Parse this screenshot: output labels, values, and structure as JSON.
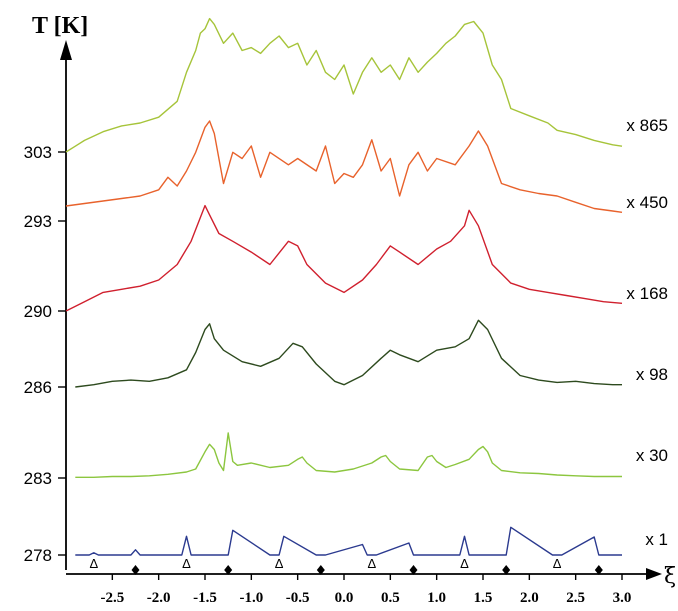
{
  "chart_data": {
    "type": "line",
    "title": "",
    "ylabel": "T [K]",
    "xlabel": "ξ",
    "xlim": [
      -3.0,
      3.0
    ],
    "x_ticks": [
      -2.5,
      -2.0,
      -1.5,
      -1.0,
      -0.5,
      0.0,
      0.5,
      1.0,
      1.5,
      2.0,
      2.5,
      3.0
    ],
    "x_tick_labels": [
      "-2.5",
      "-2.0",
      "-1.5",
      "-1.0",
      "-0.5",
      "0.0",
      "0.5",
      "1.0",
      "1.5",
      "2.0",
      "2.5",
      "3.0"
    ],
    "markers": {
      "delta_symbol": "Δ",
      "diamond_symbol": "♦",
      "delta_positions": [
        -2.7,
        -1.7,
        -0.7,
        0.3,
        1.3,
        2.3
      ],
      "diamond_positions": [
        -2.25,
        -1.25,
        -0.25,
        0.75,
        1.75,
        2.75
      ]
    },
    "series": [
      {
        "temperature": "278",
        "scale": "x 1",
        "color": "#2b3a8f",
        "x": [
          -2.9,
          -2.8,
          -2.75,
          -2.7,
          -2.65,
          -2.4,
          -2.3,
          -2.25,
          -2.2,
          -1.8,
          -1.75,
          -1.7,
          -1.65,
          -1.3,
          -1.25,
          -1.2,
          -0.8,
          -0.75,
          -0.7,
          -0.65,
          -0.3,
          -0.25,
          -0.2,
          0.2,
          0.25,
          0.3,
          0.35,
          0.7,
          0.75,
          0.8,
          1.25,
          1.3,
          1.35,
          1.7,
          1.75,
          1.8,
          2.25,
          2.3,
          2.35,
          2.7,
          2.75,
          2.8,
          3.0
        ],
        "y": [
          0,
          0,
          0,
          0.03,
          0,
          0,
          0,
          0.07,
          0,
          0,
          0,
          0.25,
          0,
          0,
          0,
          0.33,
          0,
          0,
          0,
          0.25,
          0,
          0,
          0,
          0.14,
          0,
          0,
          0,
          0.16,
          0,
          0,
          0,
          0.25,
          0,
          0,
          0,
          0.37,
          0,
          0,
          0,
          0.24,
          0,
          0,
          0
        ]
      },
      {
        "temperature": "283",
        "scale": "x 30",
        "color": "#8cc63f",
        "x": [
          -2.9,
          -2.7,
          -2.5,
          -2.3,
          -2.1,
          -1.9,
          -1.7,
          -1.6,
          -1.5,
          -1.45,
          -1.4,
          -1.35,
          -1.3,
          -1.25,
          -1.2,
          -1.15,
          -1.0,
          -0.8,
          -0.6,
          -0.5,
          -0.45,
          -0.4,
          -0.3,
          -0.1,
          0.1,
          0.3,
          0.4,
          0.45,
          0.5,
          0.6,
          0.8,
          0.9,
          0.95,
          1.0,
          1.1,
          1.2,
          1.35,
          1.45,
          1.5,
          1.55,
          1.6,
          1.7,
          1.9,
          2.1,
          2.3,
          2.5,
          2.7,
          2.9,
          3.0
        ],
        "y": [
          0.01,
          0.01,
          0.02,
          0.02,
          0.03,
          0.05,
          0.08,
          0.12,
          0.35,
          0.45,
          0.38,
          0.2,
          0.1,
          0.6,
          0.22,
          0.17,
          0.2,
          0.14,
          0.17,
          0.25,
          0.28,
          0.2,
          0.1,
          0.08,
          0.12,
          0.2,
          0.28,
          0.3,
          0.22,
          0.12,
          0.1,
          0.28,
          0.3,
          0.22,
          0.14,
          0.18,
          0.25,
          0.38,
          0.42,
          0.35,
          0.2,
          0.1,
          0.07,
          0.06,
          0.04,
          0.03,
          0.02,
          0.02,
          0.02
        ]
      },
      {
        "temperature": "286",
        "scale": "x 98",
        "color": "#2d4a1e",
        "x": [
          -2.9,
          -2.7,
          -2.5,
          -2.3,
          -2.1,
          -1.9,
          -1.7,
          -1.6,
          -1.5,
          -1.45,
          -1.4,
          -1.3,
          -1.1,
          -0.9,
          -0.7,
          -0.55,
          -0.45,
          -0.3,
          -0.1,
          0.0,
          0.2,
          0.4,
          0.5,
          0.6,
          0.8,
          1.0,
          1.2,
          1.35,
          1.45,
          1.55,
          1.7,
          1.9,
          2.1,
          2.3,
          2.5,
          2.7,
          2.9,
          3.0
        ],
        "y": [
          0.0,
          0.02,
          0.05,
          0.06,
          0.05,
          0.08,
          0.15,
          0.3,
          0.5,
          0.55,
          0.42,
          0.32,
          0.22,
          0.18,
          0.25,
          0.38,
          0.35,
          0.2,
          0.05,
          0.02,
          0.1,
          0.25,
          0.32,
          0.28,
          0.22,
          0.32,
          0.35,
          0.42,
          0.58,
          0.5,
          0.25,
          0.1,
          0.06,
          0.04,
          0.05,
          0.03,
          0.02,
          0.02
        ]
      },
      {
        "temperature": "290",
        "scale": "x 168",
        "color": "#d0202e",
        "x": [
          -3.0,
          -2.8,
          -2.6,
          -2.4,
          -2.2,
          -2.0,
          -1.8,
          -1.65,
          -1.5,
          -1.45,
          -1.35,
          -1.2,
          -1.0,
          -0.8,
          -0.6,
          -0.5,
          -0.4,
          -0.2,
          0.0,
          0.2,
          0.35,
          0.5,
          0.6,
          0.8,
          1.0,
          1.15,
          1.3,
          1.35,
          1.45,
          1.6,
          1.8,
          2.0,
          2.2,
          2.4,
          2.6,
          2.8,
          3.0
        ],
        "y": [
          0.0,
          0.06,
          0.12,
          0.14,
          0.16,
          0.2,
          0.3,
          0.45,
          0.68,
          0.62,
          0.5,
          0.45,
          0.38,
          0.3,
          0.45,
          0.42,
          0.3,
          0.18,
          0.12,
          0.2,
          0.3,
          0.42,
          0.38,
          0.3,
          0.4,
          0.45,
          0.55,
          0.65,
          0.55,
          0.3,
          0.18,
          0.14,
          0.12,
          0.1,
          0.08,
          0.06,
          0.05
        ]
      },
      {
        "temperature": "293",
        "scale": "x 450",
        "color": "#e8622c",
        "x": [
          -3.0,
          -2.8,
          -2.6,
          -2.4,
          -2.2,
          -2.0,
          -1.9,
          -1.8,
          -1.7,
          -1.6,
          -1.5,
          -1.45,
          -1.4,
          -1.3,
          -1.2,
          -1.1,
          -1.0,
          -0.9,
          -0.8,
          -0.6,
          -0.5,
          -0.3,
          -0.2,
          -0.1,
          0.0,
          0.1,
          0.2,
          0.3,
          0.4,
          0.5,
          0.6,
          0.7,
          0.8,
          0.9,
          1.0,
          1.2,
          1.35,
          1.45,
          1.55,
          1.7,
          1.9,
          2.1,
          2.3,
          2.5,
          2.7,
          2.9,
          3.0
        ],
        "y": [
          0.12,
          0.14,
          0.16,
          0.18,
          0.2,
          0.25,
          0.35,
          0.28,
          0.4,
          0.55,
          0.75,
          0.8,
          0.7,
          0.3,
          0.55,
          0.5,
          0.6,
          0.35,
          0.55,
          0.45,
          0.5,
          0.4,
          0.6,
          0.3,
          0.38,
          0.35,
          0.45,
          0.65,
          0.4,
          0.5,
          0.2,
          0.45,
          0.55,
          0.4,
          0.5,
          0.45,
          0.6,
          0.72,
          0.6,
          0.3,
          0.25,
          0.22,
          0.2,
          0.15,
          0.1,
          0.08,
          0.07
        ]
      },
      {
        "temperature": "303",
        "scale": "x 865",
        "color": "#a6c43a",
        "x": [
          -3.0,
          -2.9,
          -2.8,
          -2.6,
          -2.4,
          -2.2,
          -2.0,
          -1.8,
          -1.7,
          -1.6,
          -1.55,
          -1.5,
          -1.45,
          -1.4,
          -1.3,
          -1.2,
          -1.1,
          -1.0,
          -0.9,
          -0.8,
          -0.7,
          -0.6,
          -0.5,
          -0.4,
          -0.3,
          -0.2,
          -0.1,
          0.0,
          0.1,
          0.2,
          0.3,
          0.4,
          0.5,
          0.6,
          0.7,
          0.8,
          0.9,
          1.0,
          1.1,
          1.2,
          1.3,
          1.4,
          1.5,
          1.6,
          1.7,
          1.8,
          2.0,
          2.2,
          2.3,
          2.5,
          2.7,
          2.9,
          3.0
        ],
        "y": [
          0.0,
          0.04,
          0.08,
          0.14,
          0.18,
          0.2,
          0.24,
          0.35,
          0.55,
          0.7,
          0.82,
          0.85,
          0.92,
          0.88,
          0.75,
          0.82,
          0.7,
          0.72,
          0.68,
          0.75,
          0.8,
          0.72,
          0.75,
          0.6,
          0.7,
          0.55,
          0.5,
          0.6,
          0.4,
          0.55,
          0.65,
          0.55,
          0.6,
          0.5,
          0.65,
          0.55,
          0.62,
          0.68,
          0.75,
          0.8,
          0.88,
          0.9,
          0.82,
          0.6,
          0.5,
          0.3,
          0.25,
          0.2,
          0.15,
          0.12,
          0.08,
          0.05,
          0.04
        ]
      }
    ]
  }
}
